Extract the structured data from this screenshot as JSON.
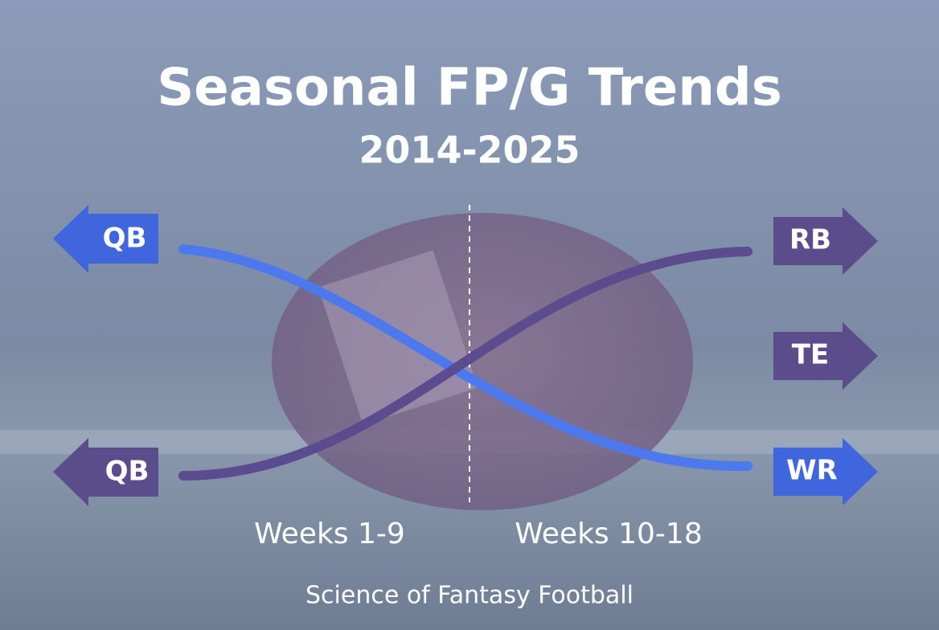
{
  "header": {
    "title": "Seasonal FP/G Trends",
    "subtitle": "2014-2025"
  },
  "badges": [
    {
      "label": "QB"
    },
    {
      "label": "QB"
    },
    {
      "label": "RB"
    },
    {
      "label": "TE"
    },
    {
      "label": "WR"
    }
  ],
  "periods": [
    "Weeks 1-9",
    "Weeks 10-18"
  ],
  "footer": "Science of Fantasy Football"
}
